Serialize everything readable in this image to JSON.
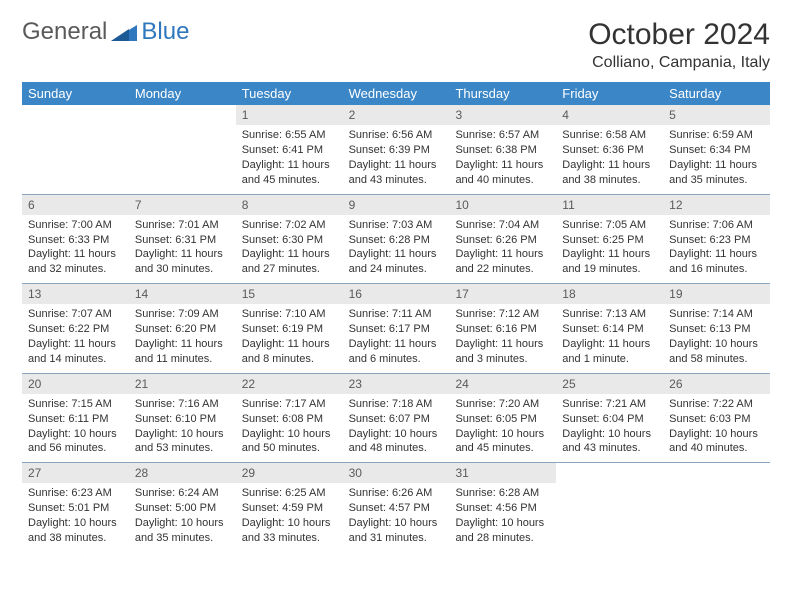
{
  "logo": {
    "text1": "General",
    "text2": "Blue"
  },
  "title": "October 2024",
  "location": "Colliano, Campania, Italy",
  "colors": {
    "header_bg": "#3b86c6",
    "header_text": "#ffffff",
    "daynum_bg": "#e9e9e9",
    "border": "#8aa4bc",
    "logo_accent": "#2f78bd"
  },
  "day_names": [
    "Sunday",
    "Monday",
    "Tuesday",
    "Wednesday",
    "Thursday",
    "Friday",
    "Saturday"
  ],
  "weeks": [
    [
      {
        "empty": true
      },
      {
        "empty": true
      },
      {
        "n": "1",
        "sr": "Sunrise: 6:55 AM",
        "ss": "Sunset: 6:41 PM",
        "dl": "Daylight: 11 hours and 45 minutes."
      },
      {
        "n": "2",
        "sr": "Sunrise: 6:56 AM",
        "ss": "Sunset: 6:39 PM",
        "dl": "Daylight: 11 hours and 43 minutes."
      },
      {
        "n": "3",
        "sr": "Sunrise: 6:57 AM",
        "ss": "Sunset: 6:38 PM",
        "dl": "Daylight: 11 hours and 40 minutes."
      },
      {
        "n": "4",
        "sr": "Sunrise: 6:58 AM",
        "ss": "Sunset: 6:36 PM",
        "dl": "Daylight: 11 hours and 38 minutes."
      },
      {
        "n": "5",
        "sr": "Sunrise: 6:59 AM",
        "ss": "Sunset: 6:34 PM",
        "dl": "Daylight: 11 hours and 35 minutes."
      }
    ],
    [
      {
        "n": "6",
        "sr": "Sunrise: 7:00 AM",
        "ss": "Sunset: 6:33 PM",
        "dl": "Daylight: 11 hours and 32 minutes."
      },
      {
        "n": "7",
        "sr": "Sunrise: 7:01 AM",
        "ss": "Sunset: 6:31 PM",
        "dl": "Daylight: 11 hours and 30 minutes."
      },
      {
        "n": "8",
        "sr": "Sunrise: 7:02 AM",
        "ss": "Sunset: 6:30 PM",
        "dl": "Daylight: 11 hours and 27 minutes."
      },
      {
        "n": "9",
        "sr": "Sunrise: 7:03 AM",
        "ss": "Sunset: 6:28 PM",
        "dl": "Daylight: 11 hours and 24 minutes."
      },
      {
        "n": "10",
        "sr": "Sunrise: 7:04 AM",
        "ss": "Sunset: 6:26 PM",
        "dl": "Daylight: 11 hours and 22 minutes."
      },
      {
        "n": "11",
        "sr": "Sunrise: 7:05 AM",
        "ss": "Sunset: 6:25 PM",
        "dl": "Daylight: 11 hours and 19 minutes."
      },
      {
        "n": "12",
        "sr": "Sunrise: 7:06 AM",
        "ss": "Sunset: 6:23 PM",
        "dl": "Daylight: 11 hours and 16 minutes."
      }
    ],
    [
      {
        "n": "13",
        "sr": "Sunrise: 7:07 AM",
        "ss": "Sunset: 6:22 PM",
        "dl": "Daylight: 11 hours and 14 minutes."
      },
      {
        "n": "14",
        "sr": "Sunrise: 7:09 AM",
        "ss": "Sunset: 6:20 PM",
        "dl": "Daylight: 11 hours and 11 minutes."
      },
      {
        "n": "15",
        "sr": "Sunrise: 7:10 AM",
        "ss": "Sunset: 6:19 PM",
        "dl": "Daylight: 11 hours and 8 minutes."
      },
      {
        "n": "16",
        "sr": "Sunrise: 7:11 AM",
        "ss": "Sunset: 6:17 PM",
        "dl": "Daylight: 11 hours and 6 minutes."
      },
      {
        "n": "17",
        "sr": "Sunrise: 7:12 AM",
        "ss": "Sunset: 6:16 PM",
        "dl": "Daylight: 11 hours and 3 minutes."
      },
      {
        "n": "18",
        "sr": "Sunrise: 7:13 AM",
        "ss": "Sunset: 6:14 PM",
        "dl": "Daylight: 11 hours and 1 minute."
      },
      {
        "n": "19",
        "sr": "Sunrise: 7:14 AM",
        "ss": "Sunset: 6:13 PM",
        "dl": "Daylight: 10 hours and 58 minutes."
      }
    ],
    [
      {
        "n": "20",
        "sr": "Sunrise: 7:15 AM",
        "ss": "Sunset: 6:11 PM",
        "dl": "Daylight: 10 hours and 56 minutes."
      },
      {
        "n": "21",
        "sr": "Sunrise: 7:16 AM",
        "ss": "Sunset: 6:10 PM",
        "dl": "Daylight: 10 hours and 53 minutes."
      },
      {
        "n": "22",
        "sr": "Sunrise: 7:17 AM",
        "ss": "Sunset: 6:08 PM",
        "dl": "Daylight: 10 hours and 50 minutes."
      },
      {
        "n": "23",
        "sr": "Sunrise: 7:18 AM",
        "ss": "Sunset: 6:07 PM",
        "dl": "Daylight: 10 hours and 48 minutes."
      },
      {
        "n": "24",
        "sr": "Sunrise: 7:20 AM",
        "ss": "Sunset: 6:05 PM",
        "dl": "Daylight: 10 hours and 45 minutes."
      },
      {
        "n": "25",
        "sr": "Sunrise: 7:21 AM",
        "ss": "Sunset: 6:04 PM",
        "dl": "Daylight: 10 hours and 43 minutes."
      },
      {
        "n": "26",
        "sr": "Sunrise: 7:22 AM",
        "ss": "Sunset: 6:03 PM",
        "dl": "Daylight: 10 hours and 40 minutes."
      }
    ],
    [
      {
        "n": "27",
        "sr": "Sunrise: 6:23 AM",
        "ss": "Sunset: 5:01 PM",
        "dl": "Daylight: 10 hours and 38 minutes."
      },
      {
        "n": "28",
        "sr": "Sunrise: 6:24 AM",
        "ss": "Sunset: 5:00 PM",
        "dl": "Daylight: 10 hours and 35 minutes."
      },
      {
        "n": "29",
        "sr": "Sunrise: 6:25 AM",
        "ss": "Sunset: 4:59 PM",
        "dl": "Daylight: 10 hours and 33 minutes."
      },
      {
        "n": "30",
        "sr": "Sunrise: 6:26 AM",
        "ss": "Sunset: 4:57 PM",
        "dl": "Daylight: 10 hours and 31 minutes."
      },
      {
        "n": "31",
        "sr": "Sunrise: 6:28 AM",
        "ss": "Sunset: 4:56 PM",
        "dl": "Daylight: 10 hours and 28 minutes."
      },
      {
        "empty": true
      },
      {
        "empty": true
      }
    ]
  ]
}
